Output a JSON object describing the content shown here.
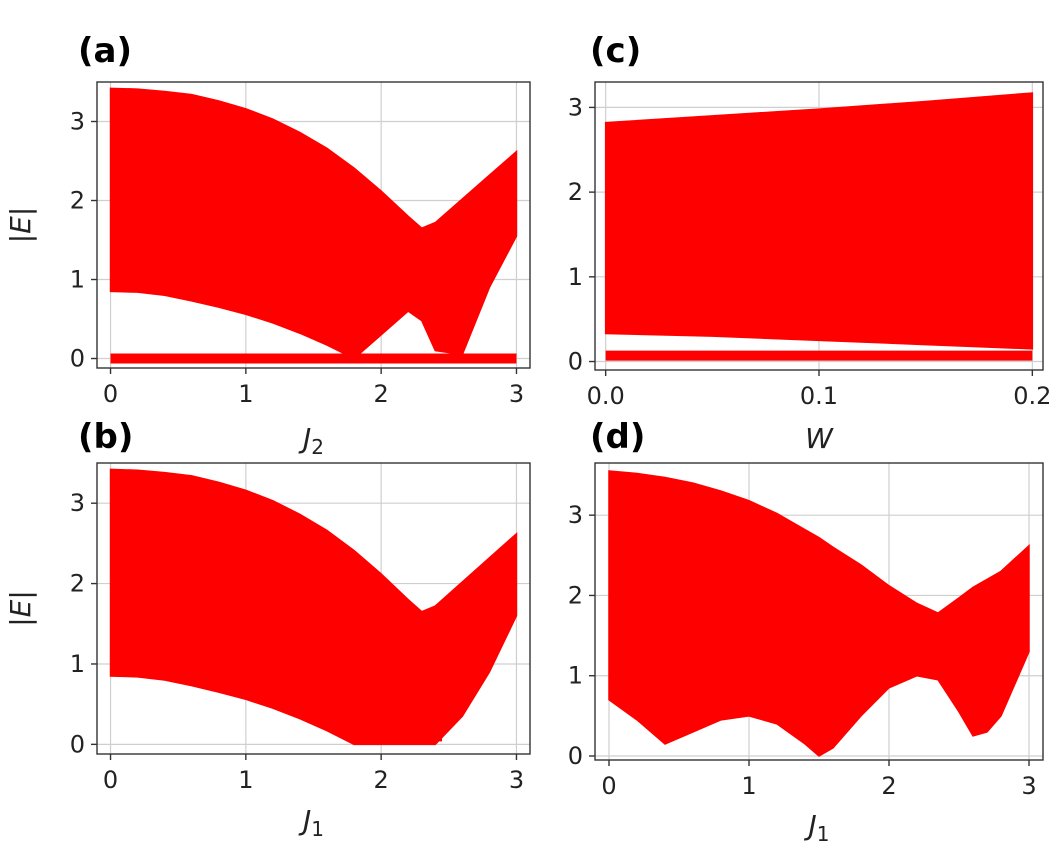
{
  "chart_data": [
    {
      "panel": "(a)",
      "type": "scatter",
      "marker": "x",
      "color": "#ff0000",
      "xlabel": "J",
      "xlabel_sub": "2",
      "ylabel": "|E|",
      "xlim": [
        -0.1,
        3.1
      ],
      "ylim": [
        -0.12,
        3.5
      ],
      "xticks": [
        0,
        1,
        2,
        3
      ],
      "xtick_labels": [
        "0",
        "1",
        "2",
        "3"
      ],
      "yticks": [
        0,
        1,
        2,
        3
      ],
      "ytick_labels": [
        "0",
        "1",
        "2",
        "3"
      ],
      "grid": true,
      "series": [
        {
          "role": "bulk-band",
          "x": [
            0.0,
            0.2,
            0.4,
            0.6,
            0.8,
            1.0,
            1.2,
            1.4,
            1.6,
            1.8,
            2.0,
            2.2,
            2.3,
            2.4,
            2.6,
            2.8,
            3.0
          ],
          "upper": [
            3.42,
            3.41,
            3.38,
            3.34,
            3.26,
            3.16,
            3.03,
            2.86,
            2.66,
            2.41,
            2.12,
            1.8,
            1.65,
            1.72,
            2.02,
            2.32,
            2.62
          ],
          "lower": [
            0.85,
            0.84,
            0.8,
            0.73,
            0.65,
            0.56,
            0.45,
            0.32,
            0.17,
            0.0,
            0.3,
            0.6,
            0.48,
            0.1,
            0.05,
            0.9,
            1.55
          ]
        },
        {
          "role": "zero-modes",
          "x": [
            0.0,
            3.0
          ],
          "y": [
            0.0,
            0.0
          ]
        }
      ]
    },
    {
      "panel": "(b)",
      "type": "scatter",
      "marker": "x",
      "color": "#ff0000",
      "xlabel": "J",
      "xlabel_sub": "1",
      "ylabel": "|E|",
      "xlim": [
        -0.1,
        3.1
      ],
      "ylim": [
        -0.12,
        3.5
      ],
      "xticks": [
        0,
        1,
        2,
        3
      ],
      "xtick_labels": [
        "0",
        "1",
        "2",
        "3"
      ],
      "yticks": [
        0,
        1,
        2,
        3
      ],
      "ytick_labels": [
        "0",
        "1",
        "2",
        "3"
      ],
      "grid": true,
      "series": [
        {
          "role": "bulk-band",
          "x": [
            0.0,
            0.2,
            0.4,
            0.6,
            0.8,
            1.0,
            1.2,
            1.4,
            1.6,
            1.8,
            2.0,
            2.2,
            2.3,
            2.4,
            2.6,
            2.8,
            3.0
          ],
          "upper": [
            3.42,
            3.41,
            3.38,
            3.34,
            3.26,
            3.16,
            3.03,
            2.86,
            2.66,
            2.41,
            2.12,
            1.8,
            1.65,
            1.72,
            2.02,
            2.32,
            2.62
          ],
          "lower": [
            0.85,
            0.84,
            0.8,
            0.73,
            0.65,
            0.56,
            0.45,
            0.32,
            0.17,
            0.0,
            0.0,
            0.0,
            0.0,
            0.0,
            0.35,
            0.9,
            1.6
          ]
        },
        {
          "role": "gap-window",
          "x": [
            1.95,
            2.15,
            2.35,
            2.45
          ],
          "upper": [
            0.3,
            0.55,
            0.35,
            0.1
          ],
          "lower": [
            0.1,
            0.1,
            0.1,
            0.1
          ]
        }
      ]
    },
    {
      "panel": "(c)",
      "type": "scatter",
      "marker": "x",
      "color": "#ff0000",
      "xlabel": "W",
      "xlabel_sub": "",
      "ylabel": "",
      "xlim": [
        -0.005,
        0.205
      ],
      "ylim": [
        -0.1,
        3.3
      ],
      "xticks": [
        0.0,
        0.1,
        0.2
      ],
      "xtick_labels": [
        "0.0",
        "0.1",
        "0.2"
      ],
      "yticks": [
        0,
        1,
        2,
        3
      ],
      "ytick_labels": [
        "0",
        "1",
        "2",
        "3"
      ],
      "grid": true,
      "series": [
        {
          "role": "bulk-band",
          "x": [
            0.0,
            0.05,
            0.1,
            0.15,
            0.2
          ],
          "upper": [
            2.82,
            2.9,
            2.98,
            3.07,
            3.17
          ],
          "lower": [
            0.33,
            0.3,
            0.25,
            0.2,
            0.15
          ]
        },
        {
          "role": "zero-modes",
          "x": [
            0.0,
            0.2
          ],
          "y": [
            0.07,
            0.07
          ]
        }
      ]
    },
    {
      "panel": "(d)",
      "type": "scatter",
      "marker": "x",
      "color": "#ff0000",
      "xlabel": "J",
      "xlabel_sub": "1",
      "ylabel": "",
      "xlim": [
        -0.1,
        3.1
      ],
      "ylim": [
        -0.05,
        3.65
      ],
      "xticks": [
        0,
        1,
        2,
        3
      ],
      "xtick_labels": [
        "0",
        "1",
        "2",
        "3"
      ],
      "yticks": [
        0,
        1,
        2,
        3
      ],
      "ytick_labels": [
        "0",
        "1",
        "2",
        "3"
      ],
      "grid": true,
      "series": [
        {
          "role": "bulk-band",
          "x": [
            0.0,
            0.2,
            0.4,
            0.6,
            0.8,
            1.0,
            1.2,
            1.4,
            1.5,
            1.6,
            1.8,
            2.0,
            2.2,
            2.35,
            2.5,
            2.6,
            2.7,
            2.8,
            3.0
          ],
          "upper": [
            3.55,
            3.52,
            3.47,
            3.4,
            3.3,
            3.18,
            3.02,
            2.82,
            2.72,
            2.6,
            2.38,
            2.12,
            1.9,
            1.78,
            1.97,
            2.1,
            2.2,
            2.3,
            2.62
          ],
          "lower": [
            0.7,
            0.45,
            0.15,
            0.3,
            0.45,
            0.5,
            0.4,
            0.15,
            0.0,
            0.1,
            0.5,
            0.85,
            1.0,
            0.95,
            0.55,
            0.25,
            0.3,
            0.5,
            1.3
          ]
        }
      ]
    }
  ]
}
